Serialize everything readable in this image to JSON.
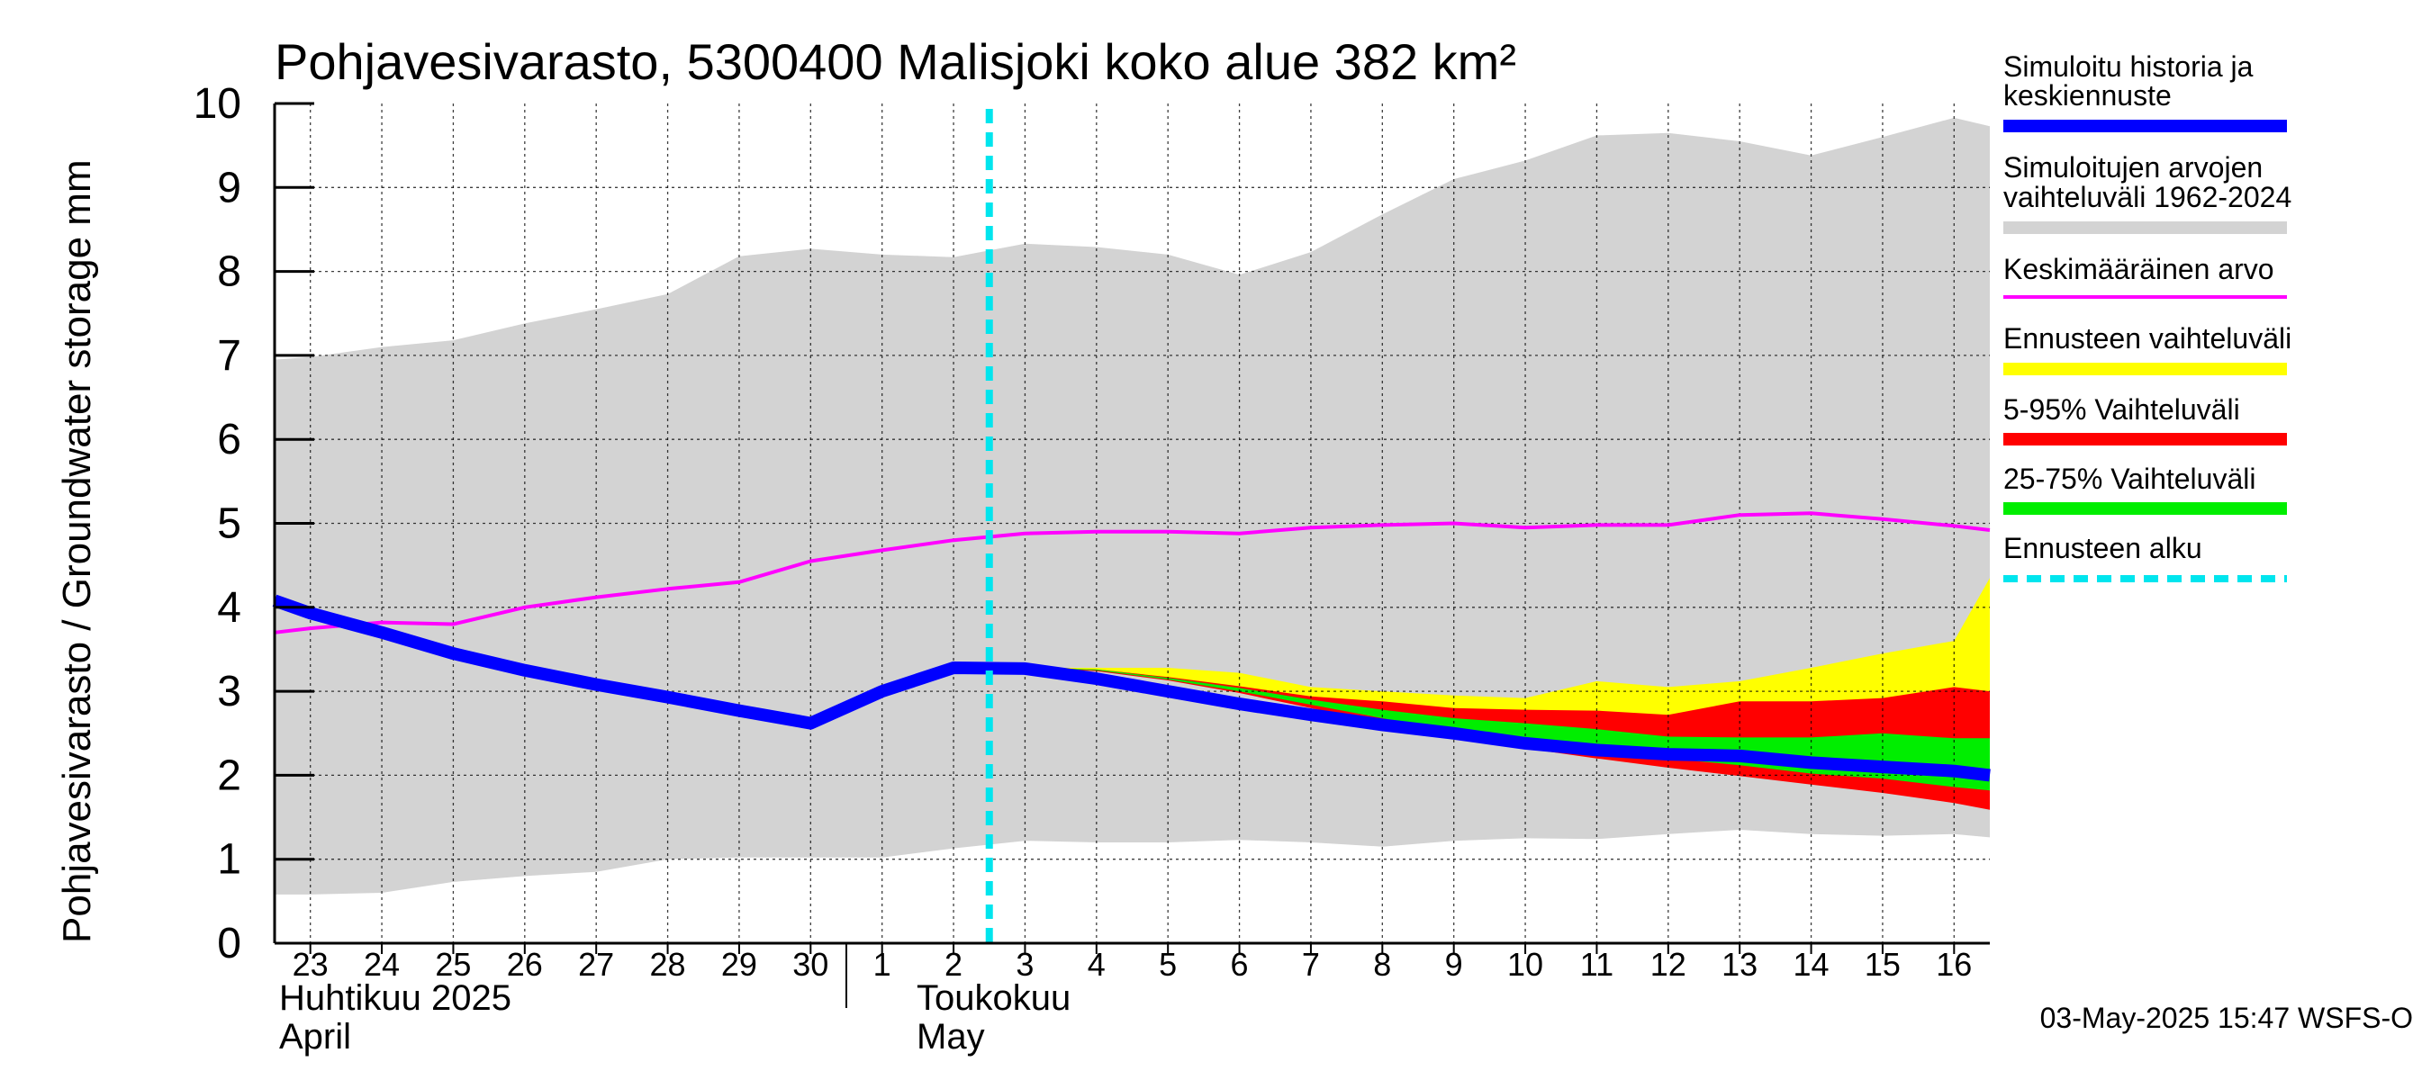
{
  "chart_data": {
    "type": "area",
    "title": "Pohjavesivarasto, 5300400 Malisjoki koko alue 382 km²",
    "ylabel": "Pohjavesivarasto / Groundwater storage   mm",
    "ylim": [
      0,
      10
    ],
    "yticks": [
      "0",
      "1",
      "2",
      "3",
      "4",
      "5",
      "6",
      "7",
      "8",
      "9",
      "10"
    ],
    "grid": true,
    "x_days": [
      23,
      24,
      25,
      26,
      27,
      28,
      29,
      30,
      31,
      32,
      33,
      34,
      35,
      36,
      37,
      38,
      39,
      40,
      41,
      42,
      43,
      44,
      45,
      46,
      47
    ],
    "xtick_labels": [
      "23",
      "24",
      "25",
      "26",
      "27",
      "28",
      "29",
      "30",
      "1",
      "2",
      "3",
      "4",
      "5",
      "6",
      "7",
      "8",
      "9",
      "10",
      "11",
      "12",
      "13",
      "14",
      "15",
      "16"
    ],
    "xlim": [
      22.5,
      46.5
    ],
    "month_labels": {
      "april_fi": "Huhtikuu  2025",
      "april_en": "April",
      "may_fi": "Toukokuu",
      "may_en": "May"
    },
    "forecast_start": 32.5,
    "series": [
      {
        "name": "Simuloitujen arvojen vaihteluväli 1962-2024",
        "kind": "band",
        "color": "#d3d3d3",
        "x": [
          22.5,
          23,
          24,
          25,
          26,
          27,
          28,
          29,
          30,
          31,
          32,
          33,
          34,
          35,
          36,
          37,
          38,
          39,
          40,
          41,
          42,
          43,
          44,
          45,
          46,
          46.5
        ],
        "upper": [
          6.95,
          6.98,
          7.1,
          7.18,
          7.38,
          7.55,
          7.73,
          8.18,
          8.27,
          8.2,
          8.17,
          8.33,
          8.29,
          8.2,
          7.96,
          8.23,
          8.68,
          9.1,
          9.32,
          9.62,
          9.65,
          9.55,
          9.38,
          9.6,
          9.83,
          9.73
        ],
        "lower": [
          0.58,
          0.58,
          0.6,
          0.73,
          0.8,
          0.85,
          1.0,
          1.02,
          1.02,
          1.02,
          1.13,
          1.22,
          1.2,
          1.2,
          1.23,
          1.2,
          1.15,
          1.22,
          1.25,
          1.24,
          1.3,
          1.35,
          1.3,
          1.28,
          1.3,
          1.26
        ]
      },
      {
        "name": "Ennusteen vaihteluväli",
        "kind": "band",
        "color": "#ffff00",
        "x": [
          33,
          34,
          35,
          36,
          37,
          38,
          39,
          40,
          41,
          42,
          43,
          44,
          45,
          46,
          46.5
        ],
        "upper": [
          3.28,
          3.28,
          3.28,
          3.22,
          3.05,
          3.0,
          2.95,
          2.92,
          3.12,
          3.05,
          3.12,
          3.28,
          3.45,
          3.6,
          4.35
        ],
        "lower": [
          3.28,
          3.26,
          3.15,
          3.0,
          2.82,
          2.65,
          2.48,
          2.35,
          2.22,
          2.1,
          2.0,
          1.9,
          1.8,
          1.68,
          1.6
        ]
      },
      {
        "name": "5-95% Vaihteluväli",
        "kind": "band",
        "color": "#ff0000",
        "x": [
          33,
          34,
          35,
          36,
          37,
          38,
          39,
          40,
          41,
          42,
          43,
          44,
          45,
          46,
          46.5
        ],
        "upper": [
          3.28,
          3.26,
          3.17,
          3.06,
          2.94,
          2.88,
          2.8,
          2.78,
          2.77,
          2.72,
          2.88,
          2.88,
          2.92,
          3.05,
          3.0
        ],
        "lower": [
          3.28,
          3.24,
          3.13,
          2.98,
          2.8,
          2.62,
          2.44,
          2.32,
          2.2,
          2.09,
          1.99,
          1.89,
          1.79,
          1.67,
          1.59
        ]
      },
      {
        "name": "25-75% Vaihteluväli",
        "kind": "band",
        "color": "#00ee00",
        "x": [
          33,
          34,
          35,
          36,
          37,
          38,
          39,
          40,
          41,
          42,
          43,
          44,
          45,
          46,
          46.5
        ],
        "upper": [
          3.28,
          3.26,
          3.16,
          3.04,
          2.9,
          2.78,
          2.68,
          2.62,
          2.55,
          2.46,
          2.45,
          2.45,
          2.5,
          2.44,
          2.44
        ],
        "lower": [
          3.28,
          3.25,
          3.14,
          3.0,
          2.84,
          2.68,
          2.52,
          2.42,
          2.3,
          2.2,
          2.12,
          2.02,
          1.96,
          1.86,
          1.82
        ]
      },
      {
        "name": "Keskimääräinen arvo",
        "kind": "line",
        "color": "#ff00ff",
        "x": [
          22.5,
          23,
          24,
          25,
          26,
          27,
          28,
          29,
          30,
          31,
          32,
          33,
          34,
          35,
          36,
          37,
          38,
          39,
          40,
          41,
          42,
          43,
          44,
          45,
          46,
          46.5
        ],
        "values": [
          3.7,
          3.75,
          3.82,
          3.8,
          4.0,
          4.12,
          4.22,
          4.3,
          4.55,
          4.68,
          4.8,
          4.88,
          4.9,
          4.9,
          4.88,
          4.95,
          4.98,
          5.0,
          4.95,
          4.98,
          4.98,
          5.1,
          5.12,
          5.05,
          4.97,
          4.92
        ]
      },
      {
        "name": "Simuloitu historia ja keskiennuste",
        "kind": "line",
        "color": "#0000ff",
        "x": [
          22.5,
          23,
          24,
          25,
          26,
          27,
          28,
          29,
          30,
          31,
          32,
          33,
          34,
          35,
          36,
          37,
          38,
          39,
          40,
          41,
          42,
          43,
          44,
          45,
          46,
          46.5
        ],
        "values": [
          4.08,
          3.93,
          3.7,
          3.45,
          3.25,
          3.08,
          2.93,
          2.77,
          2.62,
          3.0,
          3.28,
          3.27,
          3.15,
          3.0,
          2.85,
          2.72,
          2.6,
          2.5,
          2.38,
          2.3,
          2.25,
          2.23,
          2.15,
          2.1,
          2.05,
          2.0
        ]
      }
    ]
  },
  "legend": {
    "items": [
      {
        "line1": "Simuloitu historia ja",
        "line2": "keskiennuste",
        "color": "#0000ff",
        "style": "thick"
      },
      {
        "line1": "Simuloitujen arvojen",
        "line2": "vaihteluväli 1962-2024",
        "color": "#d3d3d3",
        "style": "thick"
      },
      {
        "line1": "Keskimääräinen arvo",
        "line2": "",
        "color": "#ff00ff",
        "style": "thin"
      },
      {
        "line1": "Ennusteen vaihteluväli",
        "line2": "",
        "color": "#ffff00",
        "style": "thick"
      },
      {
        "line1": "5-95% Vaihteluväli",
        "line2": "",
        "color": "#ff0000",
        "style": "thick"
      },
      {
        "line1": "25-75% Vaihteluväli",
        "line2": "",
        "color": "#00ee00",
        "style": "thick"
      },
      {
        "line1": "Ennusteen alku",
        "line2": "",
        "color": "#00e5ee",
        "style": "dashed"
      }
    ]
  },
  "footer": {
    "timestamp": "03-May-2025 15:47 WSFS-O"
  }
}
